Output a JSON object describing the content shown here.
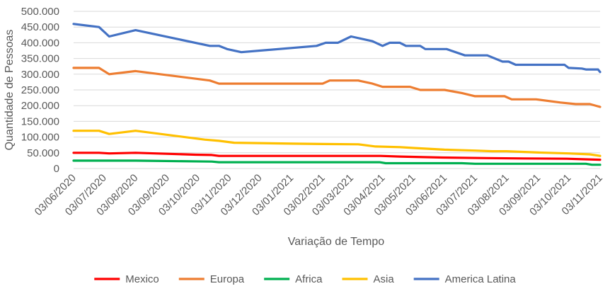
{
  "chart_data": {
    "type": "line",
    "title": "",
    "xlabel": "Variação de Tempo",
    "ylabel": "Quantidade de Pessoas",
    "ylim": [
      0,
      500000
    ],
    "yticks": [
      {
        "value": 0,
        "label": "0"
      },
      {
        "value": 50000,
        "label": "50.000"
      },
      {
        "value": 100000,
        "label": "100.000"
      },
      {
        "value": 150000,
        "label": "150.000"
      },
      {
        "value": 200000,
        "label": "200.000"
      },
      {
        "value": 250000,
        "label": "250.000"
      },
      {
        "value": 300000,
        "label": "300.000"
      },
      {
        "value": 350000,
        "label": "350.000"
      },
      {
        "value": 400000,
        "label": "400.000"
      },
      {
        "value": 450000,
        "label": "450.000"
      },
      {
        "value": 500000,
        "label": "500.000"
      }
    ],
    "xlim": [
      "2020-06-03",
      "2021-11-03"
    ],
    "xticks": [
      {
        "date": "2020-06-03",
        "label": "03/06/2020"
      },
      {
        "date": "2020-07-03",
        "label": "03/07/2020"
      },
      {
        "date": "2020-08-03",
        "label": "03/08/2020"
      },
      {
        "date": "2020-09-03",
        "label": "03/09/2020"
      },
      {
        "date": "2020-10-03",
        "label": "03/10/2020"
      },
      {
        "date": "2020-11-03",
        "label": "03/11/2020"
      },
      {
        "date": "2020-12-03",
        "label": "03/12/2020"
      },
      {
        "date": "2021-01-03",
        "label": "03/01/2021"
      },
      {
        "date": "2021-02-03",
        "label": "03/02/2021"
      },
      {
        "date": "2021-03-03",
        "label": "03/03/2021"
      },
      {
        "date": "2021-04-03",
        "label": "03/04/2021"
      },
      {
        "date": "2021-05-03",
        "label": "03/05/2021"
      },
      {
        "date": "2021-06-03",
        "label": "03/06/2021"
      },
      {
        "date": "2021-07-03",
        "label": "03/07/2021"
      },
      {
        "date": "2021-08-03",
        "label": "03/08/2021"
      },
      {
        "date": "2021-09-03",
        "label": "03/09/2021"
      },
      {
        "date": "2021-10-03",
        "label": "03/10/2021"
      },
      {
        "date": "2021-11-03",
        "label": "03/11/2021"
      }
    ],
    "grid": "horizontal",
    "legend": "bottom",
    "series": [
      {
        "name": "Mexico",
        "color": "#ff0000",
        "points": [
          [
            "2020-06-03",
            50000
          ],
          [
            "2020-06-28",
            50000
          ],
          [
            "2020-07-08",
            48000
          ],
          [
            "2020-08-03",
            50000
          ],
          [
            "2020-10-01",
            44000
          ],
          [
            "2020-10-17",
            43000
          ],
          [
            "2020-10-24",
            40000
          ],
          [
            "2021-04-01",
            40000
          ],
          [
            "2021-04-20",
            38000
          ],
          [
            "2021-06-01",
            35000
          ],
          [
            "2021-07-15",
            33000
          ],
          [
            "2021-08-20",
            32000
          ],
          [
            "2021-10-01",
            31000
          ],
          [
            "2021-11-03",
            28000
          ]
        ]
      },
      {
        "name": "Europa",
        "color": "#ed7d31",
        "points": [
          [
            "2020-06-03",
            320000
          ],
          [
            "2020-06-28",
            320000
          ],
          [
            "2020-07-08",
            300000
          ],
          [
            "2020-08-03",
            310000
          ],
          [
            "2020-10-15",
            280000
          ],
          [
            "2020-10-24",
            270000
          ],
          [
            "2021-02-03",
            270000
          ],
          [
            "2021-02-10",
            280000
          ],
          [
            "2021-03-10",
            280000
          ],
          [
            "2021-03-24",
            270000
          ],
          [
            "2021-04-03",
            260000
          ],
          [
            "2021-04-30",
            260000
          ],
          [
            "2021-05-10",
            250000
          ],
          [
            "2021-06-03",
            250000
          ],
          [
            "2021-06-20",
            240000
          ],
          [
            "2021-07-03",
            230000
          ],
          [
            "2021-08-01",
            230000
          ],
          [
            "2021-08-08",
            220000
          ],
          [
            "2021-09-01",
            220000
          ],
          [
            "2021-09-25",
            210000
          ],
          [
            "2021-10-10",
            205000
          ],
          [
            "2021-10-24",
            205000
          ],
          [
            "2021-11-03",
            196000
          ]
        ]
      },
      {
        "name": "Africa",
        "color": "#00b050",
        "points": [
          [
            "2020-06-03",
            25000
          ],
          [
            "2020-08-03",
            25000
          ],
          [
            "2020-10-17",
            22000
          ],
          [
            "2020-10-24",
            20000
          ],
          [
            "2021-03-31",
            20000
          ],
          [
            "2021-04-06",
            17000
          ],
          [
            "2021-06-20",
            17000
          ],
          [
            "2021-07-03",
            15000
          ],
          [
            "2021-10-20",
            15000
          ],
          [
            "2021-10-26",
            12000
          ],
          [
            "2021-11-03",
            12000
          ]
        ]
      },
      {
        "name": "Asia",
        "color": "#ffc000",
        "points": [
          [
            "2020-06-03",
            120000
          ],
          [
            "2020-06-28",
            120000
          ],
          [
            "2020-07-08",
            110000
          ],
          [
            "2020-08-03",
            120000
          ],
          [
            "2020-10-10",
            92000
          ],
          [
            "2020-10-24",
            88000
          ],
          [
            "2020-11-08",
            82000
          ],
          [
            "2021-01-05",
            79000
          ],
          [
            "2021-02-03",
            78000
          ],
          [
            "2021-03-10",
            77000
          ],
          [
            "2021-03-27",
            70000
          ],
          [
            "2021-04-20",
            68000
          ],
          [
            "2021-05-05",
            65000
          ],
          [
            "2021-06-03",
            60000
          ],
          [
            "2021-07-03",
            57000
          ],
          [
            "2021-07-20",
            55000
          ],
          [
            "2021-08-03",
            55000
          ],
          [
            "2021-09-03",
            51000
          ],
          [
            "2021-10-03",
            48000
          ],
          [
            "2021-10-24",
            45000
          ],
          [
            "2021-11-03",
            40000
          ]
        ]
      },
      {
        "name": "America Latina",
        "color": "#4472c4",
        "points": [
          [
            "2020-06-03",
            460000
          ],
          [
            "2020-06-28",
            450000
          ],
          [
            "2020-07-08",
            420000
          ],
          [
            "2020-08-03",
            440000
          ],
          [
            "2020-10-15",
            390000
          ],
          [
            "2020-10-24",
            390000
          ],
          [
            "2020-11-01",
            380000
          ],
          [
            "2020-11-15",
            370000
          ],
          [
            "2021-01-28",
            390000
          ],
          [
            "2021-02-06",
            400000
          ],
          [
            "2021-02-18",
            400000
          ],
          [
            "2021-03-03",
            420000
          ],
          [
            "2021-03-24",
            405000
          ],
          [
            "2021-04-03",
            390000
          ],
          [
            "2021-04-10",
            400000
          ],
          [
            "2021-04-20",
            400000
          ],
          [
            "2021-04-26",
            390000
          ],
          [
            "2021-05-10",
            390000
          ],
          [
            "2021-05-15",
            380000
          ],
          [
            "2021-06-05",
            380000
          ],
          [
            "2021-06-23",
            360000
          ],
          [
            "2021-07-15",
            360000
          ],
          [
            "2021-07-30",
            340000
          ],
          [
            "2021-08-05",
            340000
          ],
          [
            "2021-08-12",
            330000
          ],
          [
            "2021-09-29",
            330000
          ],
          [
            "2021-10-03",
            320000
          ],
          [
            "2021-10-16",
            318000
          ],
          [
            "2021-10-20",
            315000
          ],
          [
            "2021-11-01",
            315000
          ],
          [
            "2021-11-03",
            307000
          ]
        ]
      }
    ]
  }
}
